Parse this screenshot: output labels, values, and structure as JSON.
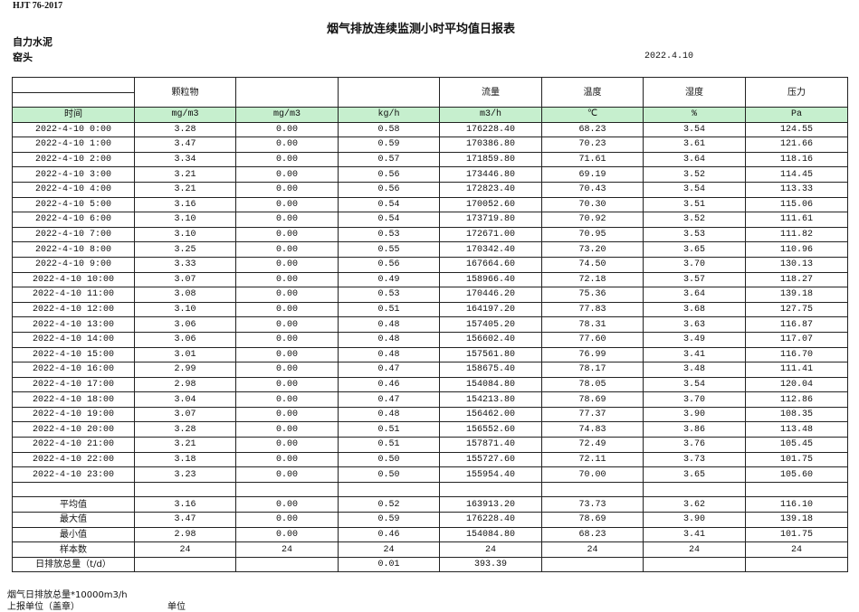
{
  "standard": "HJT  76-2017",
  "title": "烟气排放连续监测小时平均值日报表",
  "company": "自力水泥",
  "site": "窑头",
  "date": "2022.4.10",
  "header": {
    "columns": [
      "",
      "颗粒物",
      "",
      "",
      "流量",
      "温度",
      "湿度",
      "压力"
    ],
    "units": [
      "时间",
      "mg/m3",
      "mg/m3",
      "kg/h",
      "m3/h",
      "℃",
      "%",
      "Pa"
    ]
  },
  "rows": [
    [
      "2022-4-10 0:00",
      "3.28",
      "0.00",
      "0.58",
      "176228.40",
      "68.23",
      "3.54",
      "124.55"
    ],
    [
      "2022-4-10 1:00",
      "3.47",
      "0.00",
      "0.59",
      "170386.80",
      "70.23",
      "3.61",
      "121.66"
    ],
    [
      "2022-4-10 2:00",
      "3.34",
      "0.00",
      "0.57",
      "171859.80",
      "71.61",
      "3.64",
      "118.16"
    ],
    [
      "2022-4-10 3:00",
      "3.21",
      "0.00",
      "0.56",
      "173446.80",
      "69.19",
      "3.52",
      "114.45"
    ],
    [
      "2022-4-10 4:00",
      "3.21",
      "0.00",
      "0.56",
      "172823.40",
      "70.43",
      "3.54",
      "113.33"
    ],
    [
      "2022-4-10 5:00",
      "3.16",
      "0.00",
      "0.54",
      "170052.60",
      "70.30",
      "3.51",
      "115.06"
    ],
    [
      "2022-4-10 6:00",
      "3.10",
      "0.00",
      "0.54",
      "173719.80",
      "70.92",
      "3.52",
      "111.61"
    ],
    [
      "2022-4-10 7:00",
      "3.10",
      "0.00",
      "0.53",
      "172671.00",
      "70.95",
      "3.53",
      "111.82"
    ],
    [
      "2022-4-10 8:00",
      "3.25",
      "0.00",
      "0.55",
      "170342.40",
      "73.20",
      "3.65",
      "110.96"
    ],
    [
      "2022-4-10 9:00",
      "3.33",
      "0.00",
      "0.56",
      "167664.60",
      "74.50",
      "3.70",
      "130.13"
    ],
    [
      "2022-4-10 10:00",
      "3.07",
      "0.00",
      "0.49",
      "158966.40",
      "72.18",
      "3.57",
      "118.27"
    ],
    [
      "2022-4-10 11:00",
      "3.08",
      "0.00",
      "0.53",
      "170446.20",
      "75.36",
      "3.64",
      "139.18"
    ],
    [
      "2022-4-10 12:00",
      "3.10",
      "0.00",
      "0.51",
      "164197.20",
      "77.83",
      "3.68",
      "127.75"
    ],
    [
      "2022-4-10 13:00",
      "3.06",
      "0.00",
      "0.48",
      "157405.20",
      "78.31",
      "3.63",
      "116.87"
    ],
    [
      "2022-4-10 14:00",
      "3.06",
      "0.00",
      "0.48",
      "156602.40",
      "77.60",
      "3.49",
      "117.07"
    ],
    [
      "2022-4-10 15:00",
      "3.01",
      "0.00",
      "0.48",
      "157561.80",
      "76.99",
      "3.41",
      "116.70"
    ],
    [
      "2022-4-10 16:00",
      "2.99",
      "0.00",
      "0.47",
      "158675.40",
      "78.17",
      "3.48",
      "111.41"
    ],
    [
      "2022-4-10 17:00",
      "2.98",
      "0.00",
      "0.46",
      "154084.80",
      "78.05",
      "3.54",
      "120.04"
    ],
    [
      "2022-4-10 18:00",
      "3.04",
      "0.00",
      "0.47",
      "154213.80",
      "78.69",
      "3.70",
      "112.86"
    ],
    [
      "2022-4-10 19:00",
      "3.07",
      "0.00",
      "0.48",
      "156462.00",
      "77.37",
      "3.90",
      "108.35"
    ],
    [
      "2022-4-10 20:00",
      "3.28",
      "0.00",
      "0.51",
      "156552.60",
      "74.83",
      "3.86",
      "113.48"
    ],
    [
      "2022-4-10 21:00",
      "3.21",
      "0.00",
      "0.51",
      "157871.40",
      "72.49",
      "3.76",
      "105.45"
    ],
    [
      "2022-4-10 22:00",
      "3.18",
      "0.00",
      "0.50",
      "155727.60",
      "72.11",
      "3.73",
      "101.75"
    ],
    [
      "2022-4-10 23:00",
      "3.23",
      "0.00",
      "0.50",
      "155954.40",
      "70.00",
      "3.65",
      "105.60"
    ]
  ],
  "summary": [
    [
      "平均值",
      "3.16",
      "0.00",
      "0.52",
      "163913.20",
      "73.73",
      "3.62",
      "116.10"
    ],
    [
      "最大值",
      "3.47",
      "0.00",
      "0.59",
      "176228.40",
      "78.69",
      "3.90",
      "139.18"
    ],
    [
      "最小值",
      "2.98",
      "0.00",
      "0.46",
      "154084.80",
      "68.23",
      "3.41",
      "101.75"
    ],
    [
      "样本数",
      "24",
      "24",
      "24",
      "24",
      "24",
      "24",
      "24"
    ],
    [
      "日排放总量（t/d）",
      "",
      "",
      "0.01",
      "393.39",
      "",
      "",
      ""
    ]
  ],
  "footer": {
    "note": "烟气日排放总量*10000m3/h",
    "reporter": "上报单位（盖章）",
    "unit": "单位"
  }
}
